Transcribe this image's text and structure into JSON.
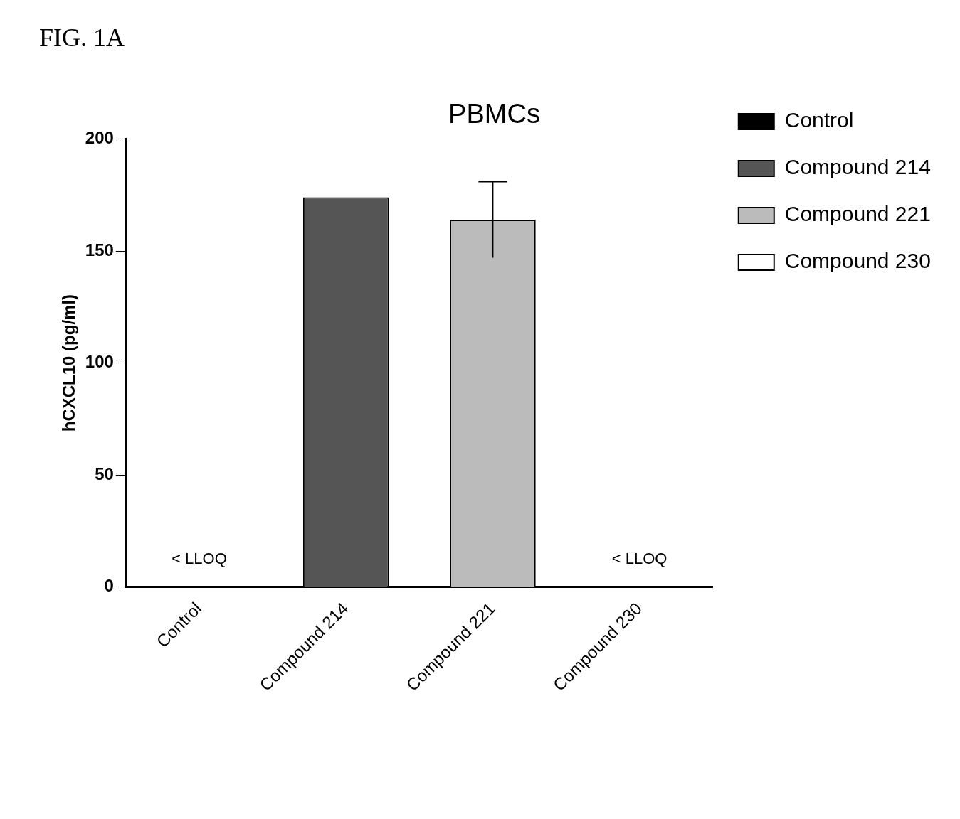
{
  "chart_data": {
    "type": "bar",
    "title": "PBMCs",
    "ylabel": "hCXCL10 (pg/ml)",
    "categories": [
      "Control",
      "Compound 214",
      "Compound 221",
      "Compound 230"
    ],
    "series": [
      {
        "name": "Control",
        "color": "#000000",
        "values": [
          null,
          null,
          null,
          null
        ]
      },
      {
        "name": "Compound 214",
        "color": "#555555",
        "values": [
          null,
          174,
          null,
          null
        ]
      },
      {
        "name": "Compound 221",
        "color": "#bbbbbb",
        "values": [
          null,
          null,
          164,
          null
        ],
        "errors": [
          null,
          null,
          17,
          null
        ]
      },
      {
        "name": "Compound 230",
        "color": "#ffffff",
        "values": [
          null,
          null,
          null,
          null
        ]
      }
    ],
    "ylim": [
      0,
      200
    ],
    "yticks": [
      0,
      50,
      100,
      150,
      200
    ],
    "grid": false,
    "legend": "right",
    "annotations": [
      "FIG. 1A",
      "< LLOQ",
      "< LLOQ"
    ]
  }
}
